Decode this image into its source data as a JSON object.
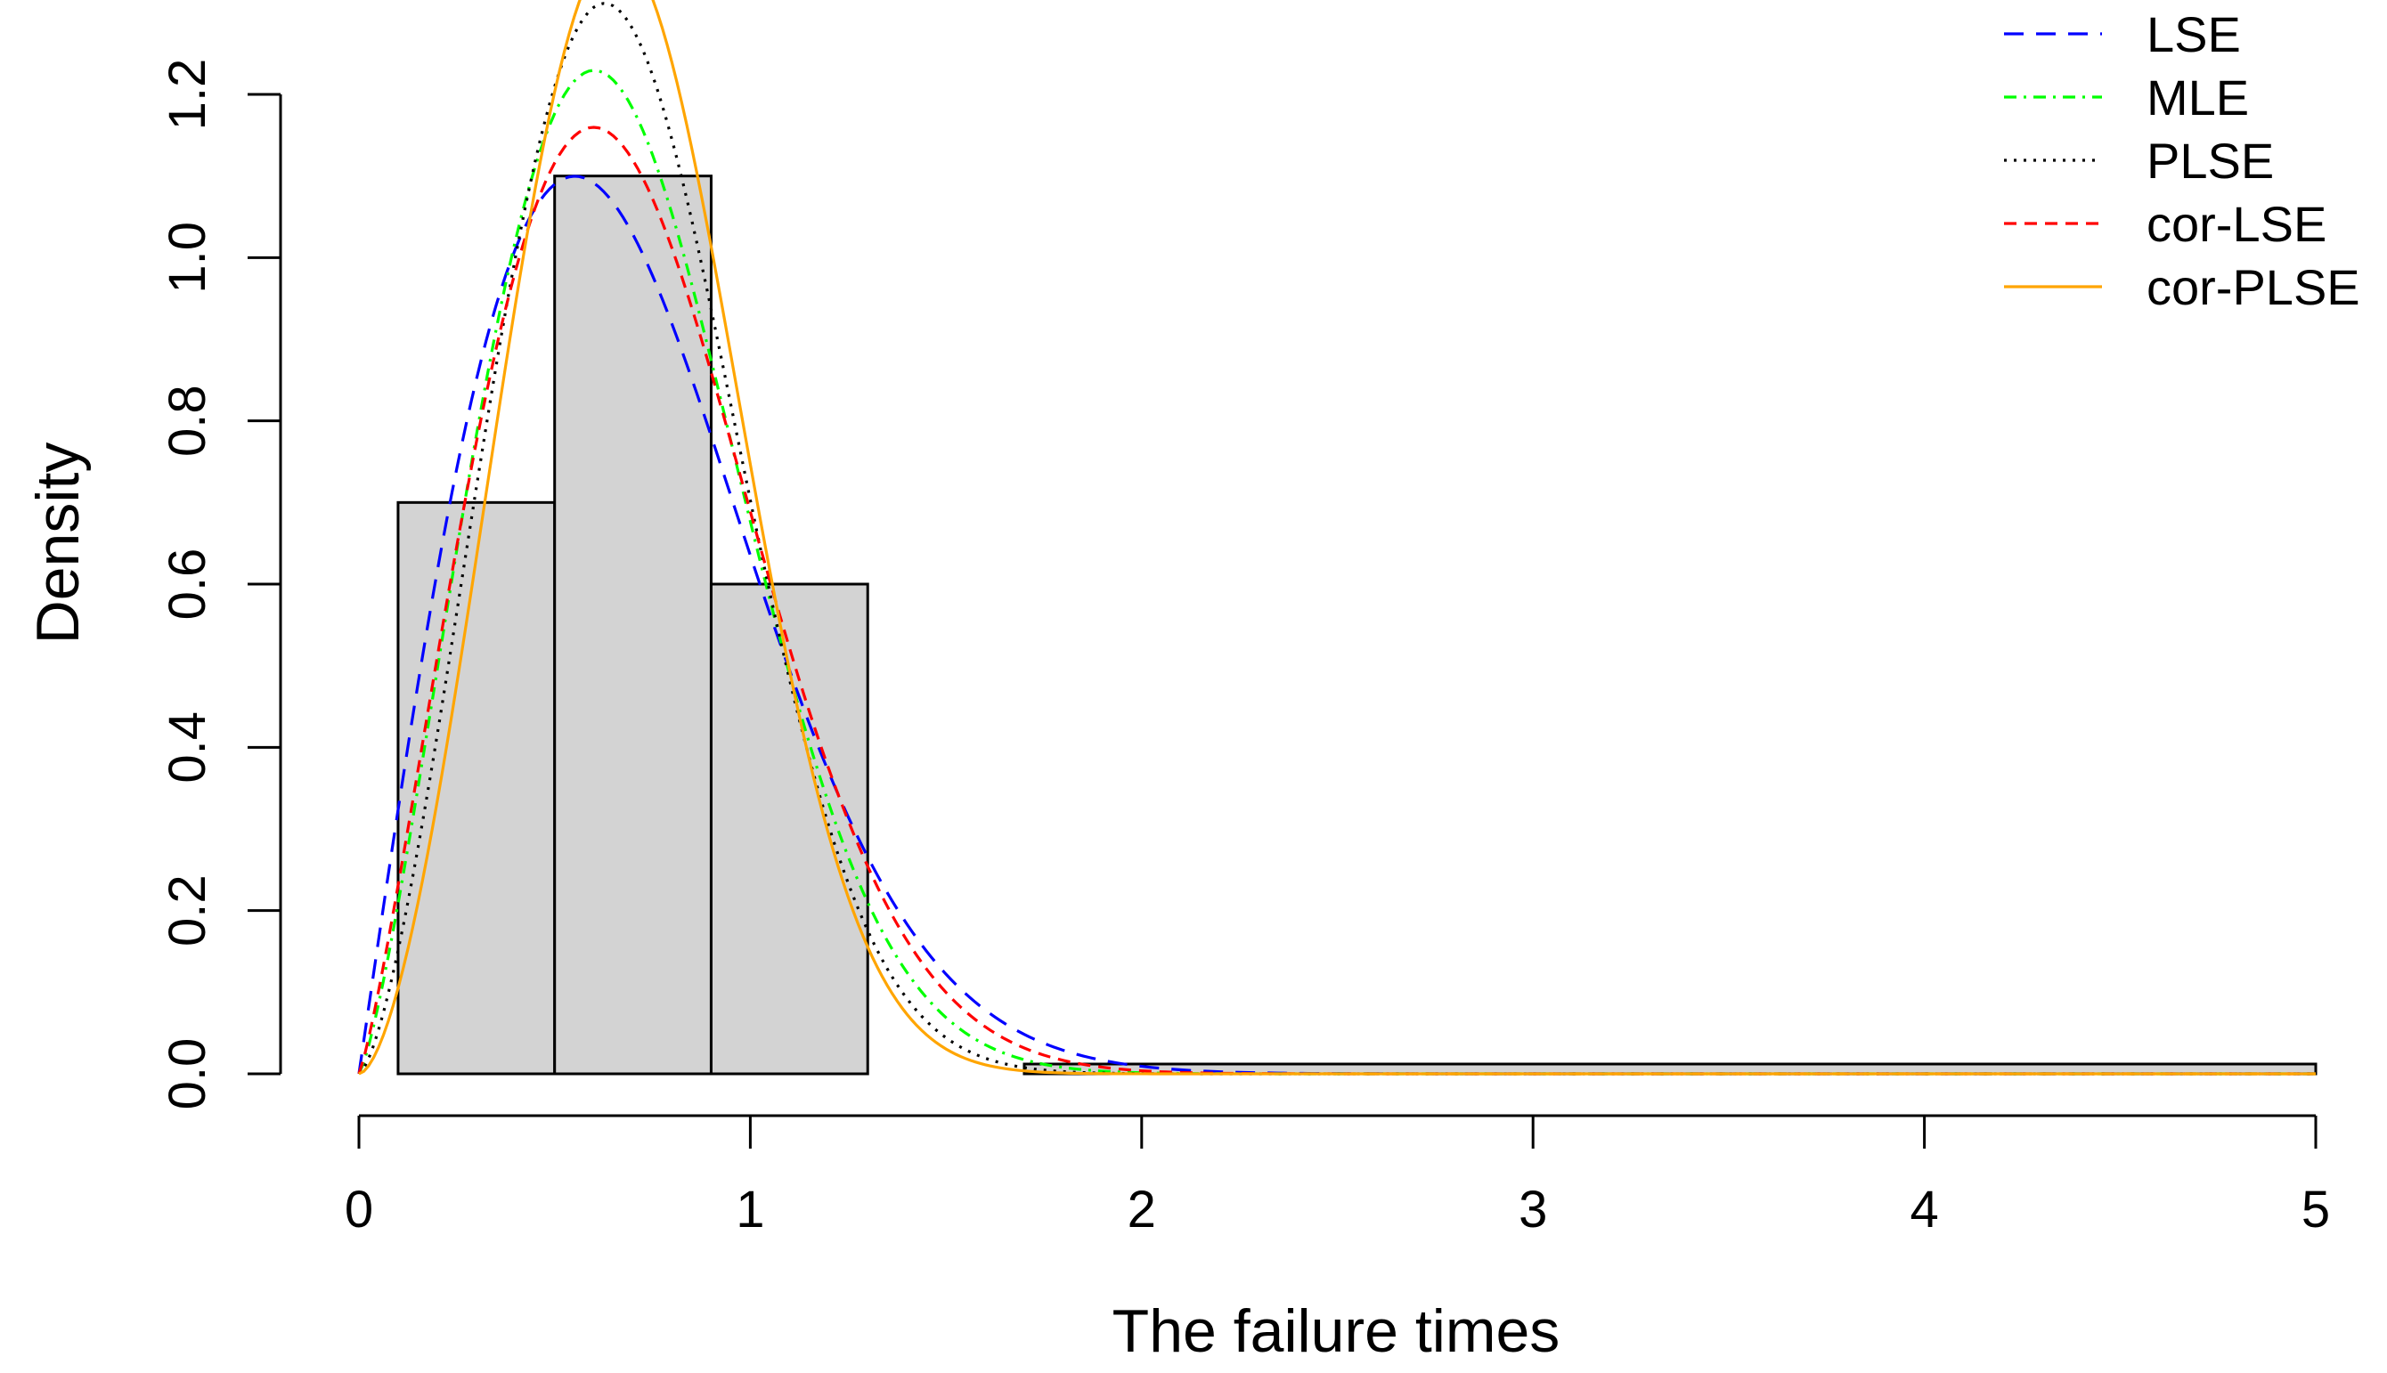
{
  "chart_data": {
    "type": "bar",
    "title": "",
    "xlabel": "The failure times",
    "ylabel": "Density",
    "xlim": [
      0,
      5
    ],
    "ylim": [
      0,
      1.2
    ],
    "grid": false,
    "legend_position": "top-right",
    "x_ticks": [
      "0",
      "1",
      "2",
      "3",
      "4",
      "5"
    ],
    "y_ticks": [
      "0.0",
      "0.2",
      "0.4",
      "0.6",
      "0.8",
      "1.0",
      "1.2"
    ],
    "histogram": [
      {
        "x0": 0.1,
        "x1": 0.5,
        "density": 0.7
      },
      {
        "x0": 0.5,
        "x1": 0.9,
        "density": 1.1
      },
      {
        "x0": 0.9,
        "x1": 1.3,
        "density": 0.6
      },
      {
        "x0": 1.3,
        "x1": 1.7,
        "density": 0.0
      },
      {
        "x0": 1.7,
        "x1": 5.0,
        "density": 0.012
      }
    ],
    "series": [
      {
        "name": "LSE",
        "color": "#0000ff",
        "dash": "22,14",
        "shape": 2.0,
        "scale": 0.78
      },
      {
        "name": "MLE",
        "color": "#00ff00",
        "dash": "14,8,3,8",
        "shape": 2.3,
        "scale": 0.77
      },
      {
        "name": "PLSE",
        "color": "#000000",
        "dash": "3,8",
        "shape": 2.5,
        "scale": 0.77
      },
      {
        "name": "cor-LSE",
        "color": "#ff0000",
        "dash": "14,9",
        "shape": 2.2,
        "scale": 0.79
      },
      {
        "name": "cor-PLSE",
        "color": "#ffa500",
        "dash": "",
        "shape": 2.7,
        "scale": 0.78
      }
    ]
  }
}
